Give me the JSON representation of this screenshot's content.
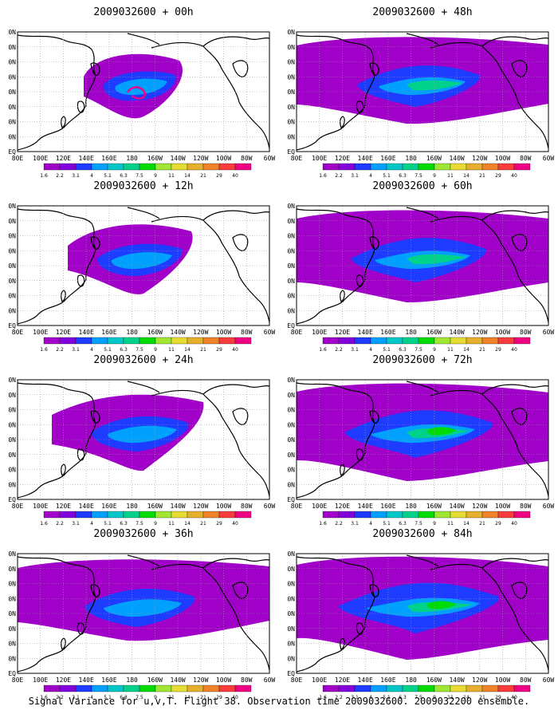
{
  "caption": "Signal Variance for u,v,T. Flight 38. Observation time 2009032600. 2009032200 ensemble.",
  "lat_labels": [
    "80N",
    "70N",
    "60N",
    "50N",
    "40N",
    "30N",
    "20N",
    "10N",
    "EQ"
  ],
  "lon_labels": [
    "80E",
    "100E",
    "120E",
    "140E",
    "160E",
    "180",
    "160W",
    "140W",
    "120W",
    "100W",
    "80W",
    "60W"
  ],
  "colorbar": {
    "levels": [
      "1.6",
      "2.2",
      "3.1",
      "4",
      "5.1",
      "6.3",
      "7.5",
      "9",
      "11",
      "14",
      "21",
      "29",
      "40"
    ],
    "colors": [
      "#a000c8",
      "#8200dc",
      "#1e3cff",
      "#00a0ff",
      "#00c8c8",
      "#00d28c",
      "#00dc00",
      "#a0e632",
      "#e6dc32",
      "#e6af2d",
      "#f08228",
      "#fa3c3c",
      "#f00082"
    ]
  },
  "colors": {
    "background": "#ffffff",
    "coastline": "#000000",
    "grid": "#9a9a9a"
  },
  "panels": [
    {
      "title": "2009032600 + 00h",
      "level": 0
    },
    {
      "title": "2009032600 + 12h",
      "level": 1
    },
    {
      "title": "2009032600 + 24h",
      "level": 2
    },
    {
      "title": "2009032600 + 36h",
      "level": 3
    },
    {
      "title": "2009032600 + 48h",
      "level": 4
    },
    {
      "title": "2009032600 + 60h",
      "level": 5
    },
    {
      "title": "2009032600 + 72h",
      "level": 6
    },
    {
      "title": "2009032600 + 84h",
      "level": 7
    }
  ]
}
